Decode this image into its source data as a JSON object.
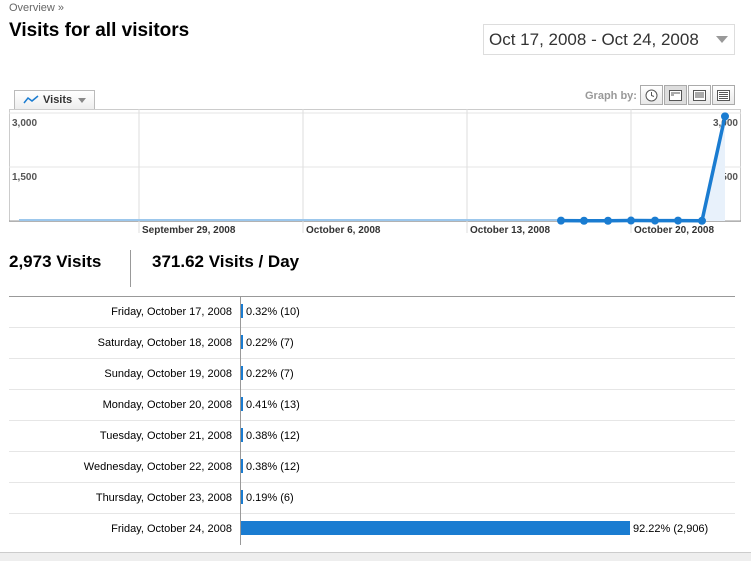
{
  "breadcrumb": {
    "item": "Overview",
    "separator": "»"
  },
  "page_title": "Visits for all visitors",
  "date_range": {
    "value": "Oct 17, 2008 - Oct 24, 2008"
  },
  "metric_selector": {
    "label": "Visits"
  },
  "graph_by": {
    "label": "Graph by:",
    "icons": [
      "clock-icon",
      "day-view-icon",
      "week-view-icon",
      "month-view-icon"
    ]
  },
  "summary": {
    "total": "2,973 Visits",
    "per_day": "371.62 Visits / Day"
  },
  "chart_data": {
    "type": "line",
    "title": "",
    "xlabel": "",
    "ylabel": "",
    "ylim": [
      0,
      3000
    ],
    "yticks": [
      "3,000",
      "1,500"
    ],
    "x_tick_labels": [
      "September 29, 2008",
      "October 6, 2008",
      "October 13, 2008",
      "October 20, 2008"
    ],
    "series": [
      {
        "color": "#1a7cd1",
        "x": [
          "Oct 17, 2008",
          "Oct 18, 2008",
          "Oct 19, 2008",
          "Oct 20, 2008",
          "Oct 21, 2008",
          "Oct 22, 2008",
          "Oct 23, 2008",
          "Oct 24, 2008"
        ],
        "values": [
          10,
          7,
          7,
          13,
          12,
          12,
          6,
          2906
        ]
      }
    ],
    "grid": true
  },
  "table": {
    "rows": [
      {
        "day": "Friday, October 17, 2008",
        "share": 0.32,
        "label": "0.32% (10)"
      },
      {
        "day": "Saturday, October 18, 2008",
        "share": 0.22,
        "label": "0.22% (7)"
      },
      {
        "day": "Sunday, October 19, 2008",
        "share": 0.22,
        "label": "0.22% (7)"
      },
      {
        "day": "Monday, October 20, 2008",
        "share": 0.41,
        "label": "0.41% (13)"
      },
      {
        "day": "Tuesday, October 21, 2008",
        "share": 0.38,
        "label": "0.38% (12)"
      },
      {
        "day": "Wednesday, October 22, 2008",
        "share": 0.38,
        "label": "0.38% (12)"
      },
      {
        "day": "Thursday, October 23, 2008",
        "share": 0.19,
        "label": "0.19% (6)"
      },
      {
        "day": "Friday, October 24, 2008",
        "share": 92.22,
        "label": "92.22% (2,906)"
      }
    ]
  }
}
